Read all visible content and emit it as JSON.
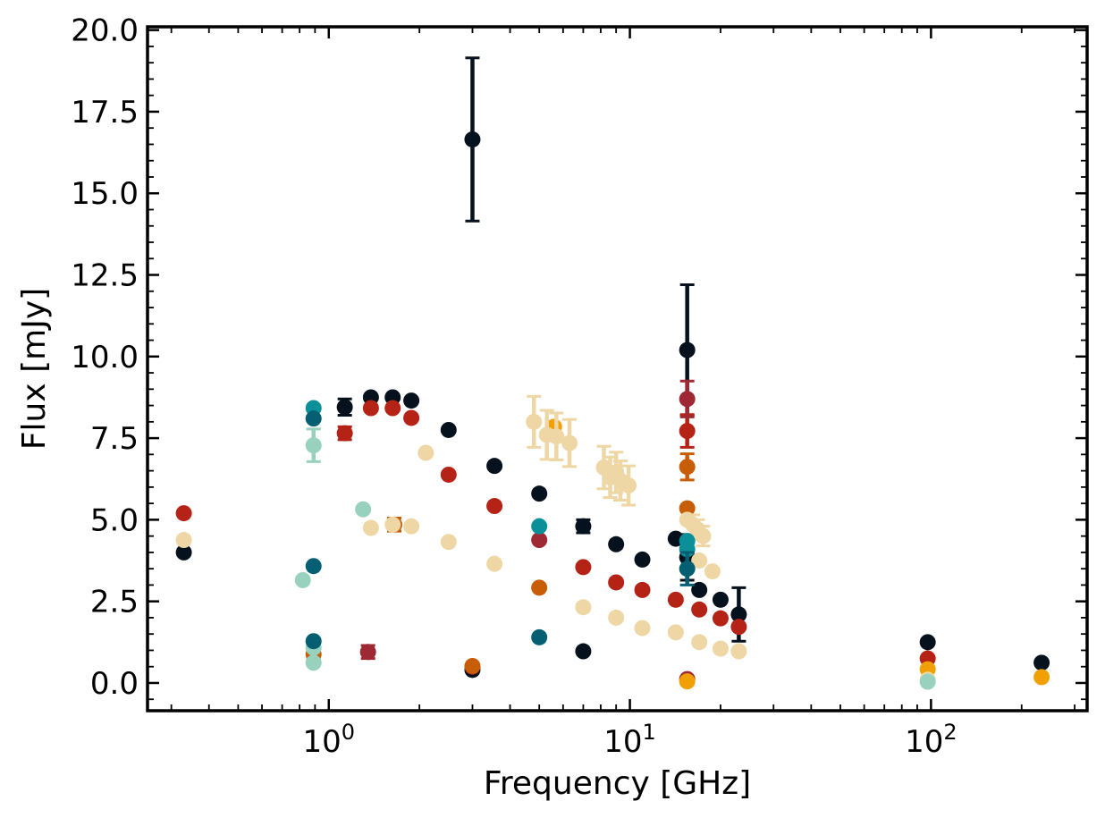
{
  "chart_data": {
    "type": "scatter",
    "xlabel": "Frequency [GHz]",
    "ylabel": "Flux [mJy]",
    "xscale": "log",
    "xlim": [
      0.25,
      330
    ],
    "ylim": [
      -0.85,
      20.1
    ],
    "x_ticks": [
      {
        "value": 1,
        "base": "10",
        "exp": "0"
      },
      {
        "value": 10,
        "base": "10",
        "exp": "1"
      },
      {
        "value": 100,
        "base": "10",
        "exp": "2"
      }
    ],
    "y_ticks": [
      "0.0",
      "2.5",
      "5.0",
      "7.5",
      "10.0",
      "12.5",
      "15.0",
      "17.5",
      "20.0"
    ],
    "grid": false,
    "series": [
      {
        "color": "#05111c",
        "points": [
          {
            "x": 0.33,
            "y": 4.0
          },
          {
            "x": 1.13,
            "y": 8.45,
            "err": 0.25
          },
          {
            "x": 1.38,
            "y": 8.75
          },
          {
            "x": 1.63,
            "y": 8.75
          },
          {
            "x": 1.88,
            "y": 8.65
          },
          {
            "x": 2.5,
            "y": 7.75
          },
          {
            "x": 3.0,
            "y": 16.65,
            "err": 2.5
          },
          {
            "x": 3.0,
            "y": 0.4
          },
          {
            "x": 3.55,
            "y": 6.65
          },
          {
            "x": 5.0,
            "y": 5.8
          },
          {
            "x": 7.0,
            "y": 4.8,
            "err": 0.2
          },
          {
            "x": 7.0,
            "y": 0.97
          },
          {
            "x": 9.0,
            "y": 4.25
          },
          {
            "x": 11.0,
            "y": 3.78
          },
          {
            "x": 14.2,
            "y": 4.42
          },
          {
            "x": 15.5,
            "y": 10.2,
            "err": 2.0
          },
          {
            "x": 15.5,
            "y": 3.85,
            "err": 0.7
          },
          {
            "x": 17.0,
            "y": 2.85
          },
          {
            "x": 20.0,
            "y": 2.55
          },
          {
            "x": 23.0,
            "y": 2.1,
            "err": 0.82
          },
          {
            "x": 97.5,
            "y": 1.25
          },
          {
            "x": 233,
            "y": 0.62
          }
        ]
      },
      {
        "color": "#b52317",
        "points": [
          {
            "x": 0.33,
            "y": 5.2
          },
          {
            "x": 1.13,
            "y": 7.65,
            "err": 0.2
          },
          {
            "x": 1.38,
            "y": 8.42
          },
          {
            "x": 1.63,
            "y": 8.42
          },
          {
            "x": 1.88,
            "y": 8.12
          },
          {
            "x": 2.5,
            "y": 6.38
          },
          {
            "x": 3.0,
            "y": 0.5
          },
          {
            "x": 3.55,
            "y": 5.42
          },
          {
            "x": 7.0,
            "y": 3.55
          },
          {
            "x": 9.0,
            "y": 3.08
          },
          {
            "x": 11.0,
            "y": 2.85
          },
          {
            "x": 14.2,
            "y": 2.55
          },
          {
            "x": 15.5,
            "y": 7.72,
            "err": 0.5
          },
          {
            "x": 17.0,
            "y": 2.25
          },
          {
            "x": 20.0,
            "y": 1.98
          },
          {
            "x": 23.0,
            "y": 1.72
          },
          {
            "x": 97.5,
            "y": 0.75
          }
        ]
      },
      {
        "color": "#9e2934",
        "points": [
          {
            "x": 1.35,
            "y": 0.95,
            "err": 0.2
          },
          {
            "x": 5.0,
            "y": 4.38
          },
          {
            "x": 15.5,
            "y": 8.7,
            "err": 0.55
          },
          {
            "x": 15.5,
            "y": 0.12
          }
        ]
      },
      {
        "color": "#c75d06",
        "points": [
          {
            "x": 0.89,
            "y": 0.88,
            "err": 0.15
          },
          {
            "x": 1.65,
            "y": 4.85,
            "err": 0.2
          },
          {
            "x": 3.0,
            "y": 0.52
          },
          {
            "x": 5.0,
            "y": 2.92
          },
          {
            "x": 15.5,
            "y": 6.62,
            "err": 0.4
          },
          {
            "x": 15.5,
            "y": 5.35
          }
        ]
      },
      {
        "color": "#f0a002",
        "points": [
          {
            "x": 5.6,
            "y": 7.85
          },
          {
            "x": 15.5,
            "y": 0.05
          },
          {
            "x": 97.5,
            "y": 0.42
          },
          {
            "x": 233,
            "y": 0.18
          }
        ]
      },
      {
        "color": "#eed7a5",
        "points": [
          {
            "x": 0.33,
            "y": 4.38
          },
          {
            "x": 1.38,
            "y": 4.75
          },
          {
            "x": 1.63,
            "y": 4.85
          },
          {
            "x": 1.88,
            "y": 4.8
          },
          {
            "x": 2.1,
            "y": 7.05
          },
          {
            "x": 2.5,
            "y": 4.32
          },
          {
            "x": 3.55,
            "y": 3.65
          },
          {
            "x": 4.8,
            "y": 8.0,
            "err": 0.78
          },
          {
            "x": 5.3,
            "y": 7.6,
            "err": 0.75
          },
          {
            "x": 5.7,
            "y": 7.55,
            "err": 0.72
          },
          {
            "x": 6.3,
            "y": 7.35,
            "err": 0.72
          },
          {
            "x": 8.2,
            "y": 6.6,
            "err": 0.65
          },
          {
            "x": 8.6,
            "y": 6.3,
            "err": 0.62
          },
          {
            "x": 9.0,
            "y": 6.45,
            "err": 0.62
          },
          {
            "x": 9.3,
            "y": 6.2,
            "err": 0.6
          },
          {
            "x": 9.9,
            "y": 6.05,
            "err": 0.6
          },
          {
            "x": 7.0,
            "y": 2.32
          },
          {
            "x": 9.0,
            "y": 2.0
          },
          {
            "x": 11.0,
            "y": 1.68
          },
          {
            "x": 14.2,
            "y": 1.55
          },
          {
            "x": 15.5,
            "y": 5.0
          },
          {
            "x": 16.2,
            "y": 4.85,
            "err": 0.3
          },
          {
            "x": 16.8,
            "y": 4.7,
            "err": 0.3
          },
          {
            "x": 17.5,
            "y": 4.5,
            "err": 0.3
          },
          {
            "x": 17.0,
            "y": 3.75
          },
          {
            "x": 17.0,
            "y": 1.25
          },
          {
            "x": 18.8,
            "y": 3.42
          },
          {
            "x": 20.0,
            "y": 1.05
          },
          {
            "x": 23.0,
            "y": 0.97
          },
          {
            "x": 97.5,
            "y": 0.1
          }
        ]
      },
      {
        "color": "#99d1bf",
        "points": [
          {
            "x": 0.82,
            "y": 3.15
          },
          {
            "x": 0.89,
            "y": 7.28,
            "err": 0.5
          },
          {
            "x": 0.89,
            "y": 0.62
          },
          {
            "x": 0.89,
            "y": 1.08
          },
          {
            "x": 1.3,
            "y": 5.32
          },
          {
            "x": 97.5,
            "y": 0.04
          }
        ]
      },
      {
        "color": "#0b9099",
        "points": [
          {
            "x": 0.89,
            "y": 8.42
          },
          {
            "x": 5.0,
            "y": 4.8
          },
          {
            "x": 15.5,
            "y": 4.1
          },
          {
            "x": 15.5,
            "y": 4.35
          }
        ]
      },
      {
        "color": "#055f72",
        "points": [
          {
            "x": 0.89,
            "y": 8.1
          },
          {
            "x": 0.89,
            "y": 3.58
          },
          {
            "x": 0.89,
            "y": 1.28
          },
          {
            "x": 5.0,
            "y": 1.4
          },
          {
            "x": 15.5,
            "y": 3.5,
            "err": 0.5
          }
        ]
      }
    ]
  }
}
